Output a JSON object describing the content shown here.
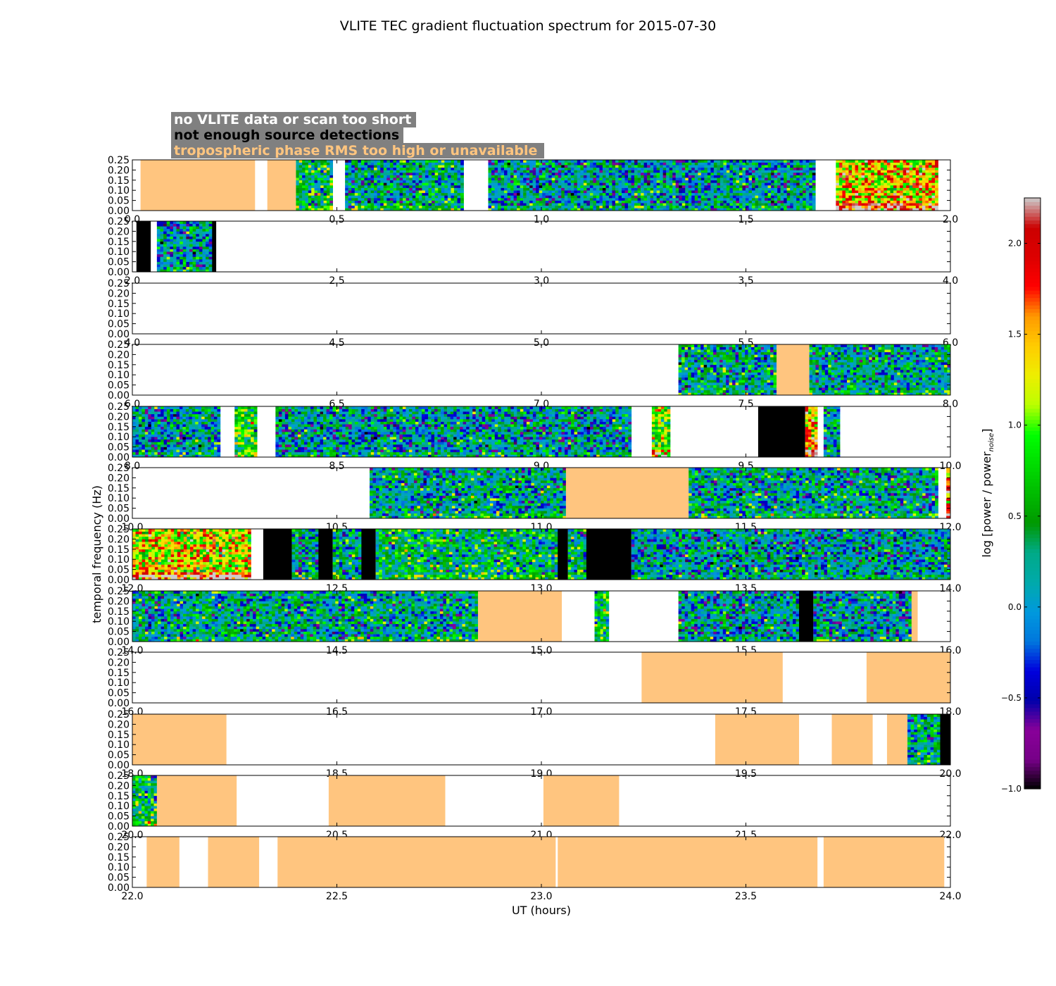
{
  "chart_data": {
    "type": "heatmap",
    "title": "VLITE TEC gradient fluctuation spectrum for 2015-07-30",
    "xlabel": "UT (hours)",
    "ylabel": "temporal frequency (Hz)",
    "colorbar": {
      "label_main": "log [power / power",
      "label_sub": "noise",
      "label_end": "]",
      "range": [
        -1.0,
        2.25
      ],
      "ticks": [
        "−1.0",
        "−0.5",
        "0.0",
        "0.5",
        "1.0",
        "1.5",
        "2.0"
      ],
      "tick_values": [
        -1.0,
        -0.5,
        0.0,
        0.5,
        1.0,
        1.5,
        2.0
      ],
      "colormap": "nipy_spectral"
    },
    "legend": {
      "placement": "top-left",
      "background": "#808080",
      "items": [
        {
          "label": "no VLITE data or scan too short",
          "color": "#ffffff"
        },
        {
          "label": "not enough source detections",
          "color": "#000000"
        },
        {
          "label": "tropospheric phase RMS too high or unavailable",
          "color": "#ffc57f"
        }
      ]
    },
    "category_colors": {
      "troposphere": "#ffc57f",
      "detections": "#000000",
      "saturated": "#d4d4d4"
    },
    "ylim": [
      0,
      0.25
    ],
    "yticks": [
      "0.00",
      "0.05",
      "0.10",
      "0.15",
      "0.20",
      "0.25"
    ],
    "ytick_values": [
      0,
      0.05,
      0.1,
      0.15,
      0.2,
      0.25
    ],
    "panels": [
      {
        "xlim": [
          0,
          2
        ],
        "xticks": [
          "0.0",
          "0.5",
          "1.0",
          "1.5",
          "2.0"
        ],
        "segments": [
          {
            "start": 0.02,
            "end": 0.3,
            "kind": "troposphere"
          },
          {
            "start": 0.33,
            "end": 0.4,
            "kind": "troposphere"
          },
          {
            "start": 0.4,
            "end": 0.49,
            "kind": "spectrum",
            "level": 0.4
          },
          {
            "start": 0.52,
            "end": 0.81,
            "kind": "spectrum",
            "level": 0.2
          },
          {
            "start": 0.87,
            "end": 1.67,
            "kind": "spectrum",
            "level": 0.1
          },
          {
            "start": 1.72,
            "end": 1.97,
            "kind": "spectrum",
            "level": 1.4
          }
        ]
      },
      {
        "xlim": [
          2,
          4
        ],
        "xticks": [
          "2.0",
          "2.5",
          "3.0",
          "3.5",
          "4.0"
        ],
        "segments": [
          {
            "start": 2.01,
            "end": 2.045,
            "kind": "detections"
          },
          {
            "start": 2.06,
            "end": 2.195,
            "kind": "spectrum",
            "level": 0.1
          },
          {
            "start": 2.195,
            "end": 2.205,
            "kind": "detections"
          }
        ]
      },
      {
        "xlim": [
          4,
          6
        ],
        "xticks": [
          "4.0",
          "4.5",
          "5.0",
          "5.5",
          "6.0"
        ],
        "segments": []
      },
      {
        "xlim": [
          6,
          8
        ],
        "xticks": [
          "6.0",
          "6.5",
          "7.0",
          "7.5",
          "8.0"
        ],
        "segments": [
          {
            "start": 7.335,
            "end": 7.575,
            "kind": "spectrum",
            "level": 0.2
          },
          {
            "start": 7.575,
            "end": 7.655,
            "kind": "troposphere"
          },
          {
            "start": 7.655,
            "end": 8.0,
            "kind": "spectrum",
            "level": 0.2
          }
        ]
      },
      {
        "xlim": [
          8,
          10
        ],
        "xticks": [
          "8.0",
          "8.5",
          "9.0",
          "9.5",
          "10.0"
        ],
        "segments": [
          {
            "start": 8.0,
            "end": 8.215,
            "kind": "spectrum",
            "level": 0.1
          },
          {
            "start": 8.25,
            "end": 8.305,
            "kind": "spectrum",
            "level": 0.7
          },
          {
            "start": 8.35,
            "end": 9.22,
            "kind": "spectrum",
            "level": 0.1
          },
          {
            "start": 9.27,
            "end": 9.315,
            "kind": "spectrum",
            "level": 1.0
          },
          {
            "start": 9.53,
            "end": 9.645,
            "kind": "detections"
          },
          {
            "start": 9.645,
            "end": 9.675,
            "kind": "spectrum",
            "level": 1.5
          },
          {
            "start": 9.69,
            "end": 9.73,
            "kind": "spectrum",
            "level": 0.2
          }
        ]
      },
      {
        "xlim": [
          10,
          12
        ],
        "xticks": [
          "10.0",
          "10.5",
          "11.0",
          "11.5",
          "12.0"
        ],
        "segments": [
          {
            "start": 10.58,
            "end": 11.06,
            "kind": "spectrum",
            "level": 0.2
          },
          {
            "start": 11.06,
            "end": 11.36,
            "kind": "troposphere"
          },
          {
            "start": 11.36,
            "end": 11.97,
            "kind": "spectrum",
            "level": 0.2
          },
          {
            "start": 11.99,
            "end": 12.0,
            "kind": "spectrum",
            "level": 1.5
          }
        ]
      },
      {
        "xlim": [
          12,
          14
        ],
        "xticks": [
          "12.0",
          "12.5",
          "13.0",
          "13.5",
          "14.0"
        ],
        "segments": [
          {
            "start": 12.0,
            "end": 12.29,
            "kind": "spectrum",
            "level": 1.3
          },
          {
            "start": 12.32,
            "end": 12.39,
            "kind": "detections"
          },
          {
            "start": 12.39,
            "end": 12.455,
            "kind": "spectrum",
            "level": 0.2
          },
          {
            "start": 12.455,
            "end": 12.49,
            "kind": "detections"
          },
          {
            "start": 12.49,
            "end": 12.56,
            "kind": "spectrum",
            "level": 0.3
          },
          {
            "start": 12.56,
            "end": 12.595,
            "kind": "detections"
          },
          {
            "start": 12.595,
            "end": 13.04,
            "kind": "spectrum",
            "level": 0.4
          },
          {
            "start": 13.04,
            "end": 13.065,
            "kind": "detections"
          },
          {
            "start": 13.065,
            "end": 13.11,
            "kind": "spectrum",
            "level": 0.3
          },
          {
            "start": 13.11,
            "end": 13.22,
            "kind": "detections"
          },
          {
            "start": 13.22,
            "end": 14.0,
            "kind": "spectrum",
            "level": 0.1
          }
        ]
      },
      {
        "xlim": [
          14,
          16
        ],
        "xticks": [
          "14.0",
          "14.5",
          "15.0",
          "15.5",
          "16.0"
        ],
        "segments": [
          {
            "start": 14.0,
            "end": 14.845,
            "kind": "spectrum",
            "level": 0.2
          },
          {
            "start": 14.845,
            "end": 15.05,
            "kind": "troposphere"
          },
          {
            "start": 15.13,
            "end": 15.165,
            "kind": "spectrum",
            "level": 0.5
          },
          {
            "start": 15.335,
            "end": 15.63,
            "kind": "spectrum",
            "level": 0.1
          },
          {
            "start": 15.63,
            "end": 15.665,
            "kind": "detections"
          },
          {
            "start": 15.665,
            "end": 15.905,
            "kind": "spectrum",
            "level": 0.1
          },
          {
            "start": 15.905,
            "end": 15.92,
            "kind": "troposphere"
          }
        ]
      },
      {
        "xlim": [
          16,
          18
        ],
        "xticks": [
          "16.0",
          "16.5",
          "17.0",
          "17.5",
          "18.0"
        ],
        "segments": [
          {
            "start": 17.245,
            "end": 17.59,
            "kind": "troposphere"
          },
          {
            "start": 17.795,
            "end": 18.0,
            "kind": "troposphere"
          }
        ]
      },
      {
        "xlim": [
          18,
          20
        ],
        "xticks": [
          "18.0",
          "18.5",
          "19.0",
          "19.5",
          "20.0"
        ],
        "segments": [
          {
            "start": 18.0,
            "end": 18.23,
            "kind": "troposphere"
          },
          {
            "start": 19.425,
            "end": 19.63,
            "kind": "troposphere"
          },
          {
            "start": 19.71,
            "end": 19.81,
            "kind": "troposphere"
          },
          {
            "start": 19.845,
            "end": 19.895,
            "kind": "troposphere"
          },
          {
            "start": 19.895,
            "end": 19.975,
            "kind": "spectrum",
            "level": 0.3
          },
          {
            "start": 19.975,
            "end": 20.0,
            "kind": "detections"
          }
        ]
      },
      {
        "xlim": [
          20,
          22
        ],
        "xticks": [
          "20.0",
          "20.5",
          "21.0",
          "21.5",
          "22.0"
        ],
        "segments": [
          {
            "start": 20.0,
            "end": 20.06,
            "kind": "spectrum",
            "level": 0.4
          },
          {
            "start": 20.06,
            "end": 20.255,
            "kind": "troposphere"
          },
          {
            "start": 20.48,
            "end": 20.765,
            "kind": "troposphere"
          },
          {
            "start": 21.005,
            "end": 21.19,
            "kind": "troposphere"
          }
        ]
      },
      {
        "xlim": [
          22,
          24
        ],
        "xticks": [
          "22.0",
          "22.5",
          "23.0",
          "23.5",
          "24.0"
        ],
        "segments": [
          {
            "start": 22.035,
            "end": 22.115,
            "kind": "troposphere"
          },
          {
            "start": 22.185,
            "end": 22.31,
            "kind": "troposphere"
          },
          {
            "start": 22.355,
            "end": 23.035,
            "kind": "troposphere"
          },
          {
            "start": 23.04,
            "end": 23.675,
            "kind": "troposphere"
          },
          {
            "start": 23.69,
            "end": 23.985,
            "kind": "troposphere"
          }
        ]
      }
    ]
  }
}
